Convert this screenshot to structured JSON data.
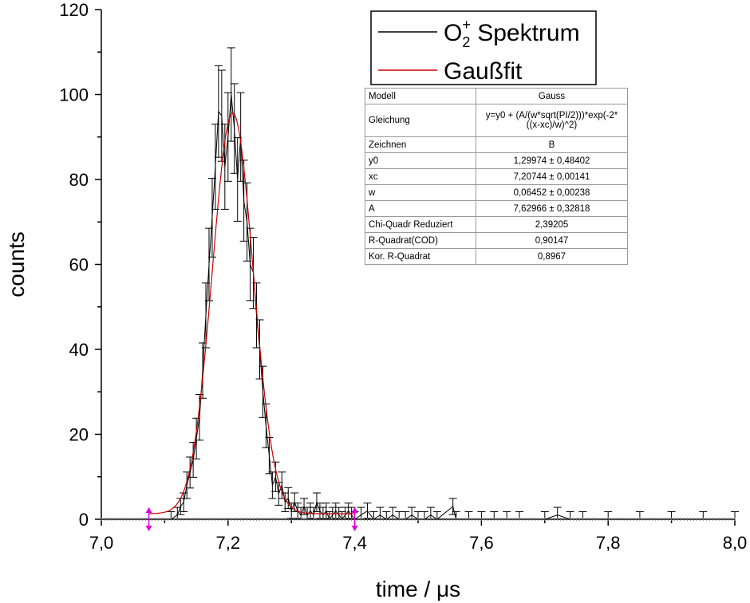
{
  "chart_data": {
    "type": "line",
    "xlabel": "time / μs",
    "ylabel": "counts",
    "xlim": [
      7.0,
      8.0
    ],
    "ylim": [
      0,
      120
    ],
    "x_ticks": [
      "7,0",
      "7,2",
      "7,4",
      "7,6",
      "7,8",
      "8,0"
    ],
    "y_ticks": [
      "0",
      "20",
      "40",
      "60",
      "80",
      "100",
      "120"
    ],
    "grid": false,
    "legend_position": "top-right",
    "series": [
      {
        "name": "O2+ Spektrum",
        "color": "#000000",
        "error_bars": true,
        "points": [
          [
            7.11,
            0
          ],
          [
            7.12,
            1
          ],
          [
            7.125,
            3
          ],
          [
            7.13,
            4
          ],
          [
            7.135,
            8
          ],
          [
            7.14,
            11
          ],
          [
            7.145,
            14
          ],
          [
            7.15,
            19
          ],
          [
            7.155,
            24
          ],
          [
            7.16,
            35
          ],
          [
            7.165,
            48
          ],
          [
            7.17,
            60
          ],
          [
            7.175,
            71
          ],
          [
            7.18,
            83
          ],
          [
            7.185,
            96
          ],
          [
            7.19,
            95
          ],
          [
            7.195,
            83
          ],
          [
            7.2,
            90
          ],
          [
            7.205,
            100
          ],
          [
            7.21,
            92
          ],
          [
            7.215,
            80
          ],
          [
            7.22,
            90
          ],
          [
            7.225,
            75
          ],
          [
            7.23,
            70
          ],
          [
            7.235,
            60
          ],
          [
            7.24,
            58
          ],
          [
            7.245,
            48
          ],
          [
            7.25,
            40
          ],
          [
            7.255,
            30
          ],
          [
            7.26,
            22
          ],
          [
            7.265,
            15
          ],
          [
            7.27,
            8
          ],
          [
            7.275,
            10
          ],
          [
            7.28,
            6
          ],
          [
            7.285,
            8
          ],
          [
            7.29,
            4
          ],
          [
            7.295,
            5
          ],
          [
            7.3,
            2
          ],
          [
            7.305,
            4
          ],
          [
            7.31,
            2
          ],
          [
            7.315,
            1
          ],
          [
            7.32,
            3
          ],
          [
            7.325,
            1
          ],
          [
            7.33,
            2
          ],
          [
            7.335,
            1
          ],
          [
            7.34,
            4
          ],
          [
            7.345,
            2
          ],
          [
            7.35,
            1
          ],
          [
            7.355,
            2
          ],
          [
            7.36,
            0
          ],
          [
            7.365,
            1
          ],
          [
            7.37,
            2
          ],
          [
            7.375,
            1
          ],
          [
            7.38,
            0
          ],
          [
            7.385,
            1
          ],
          [
            7.39,
            2
          ],
          [
            7.395,
            1
          ],
          [
            7.4,
            0
          ],
          [
            7.41,
            1
          ],
          [
            7.42,
            2
          ],
          [
            7.43,
            0
          ],
          [
            7.44,
            1
          ],
          [
            7.45,
            0
          ],
          [
            7.46,
            1
          ],
          [
            7.47,
            0
          ],
          [
            7.48,
            0
          ],
          [
            7.49,
            1
          ],
          [
            7.5,
            0
          ],
          [
            7.51,
            0
          ],
          [
            7.52,
            1
          ],
          [
            7.53,
            0
          ],
          [
            7.555,
            3
          ],
          [
            7.56,
            0
          ],
          [
            7.58,
            0
          ],
          [
            7.6,
            0
          ],
          [
            7.62,
            0
          ],
          [
            7.64,
            0
          ],
          [
            7.66,
            0
          ],
          [
            7.7,
            0
          ],
          [
            7.72,
            1
          ],
          [
            7.74,
            0
          ],
          [
            7.76,
            0
          ],
          [
            7.8,
            0
          ],
          [
            7.85,
            0
          ],
          [
            7.9,
            0
          ],
          [
            7.95,
            0
          ],
          [
            8.0,
            0
          ]
        ]
      },
      {
        "name": "Gaußfit",
        "color": "#cc0000",
        "model": "gauss",
        "params": {
          "y0": 1.29974,
          "xc": 7.20744,
          "w": 0.06452,
          "A": 7.62966
        }
      }
    ]
  },
  "legend": {
    "items": [
      {
        "base": "O",
        "sub": "2",
        "sup": "+",
        "rest": " Spektrum"
      },
      {
        "base": "Gaußfit"
      }
    ]
  },
  "fit_table": {
    "rows": [
      {
        "label": "Modell",
        "value": "Gauss"
      },
      {
        "label": "Gleichung",
        "value": "y=y0 + (A/(w*sqrt(PI/2)))*exp(-2*((x-xc)/w)^2)"
      },
      {
        "label": "Zeichnen",
        "value": "B"
      },
      {
        "label": "y0",
        "value": "1,29974 ± 0,48402"
      },
      {
        "label": "xc",
        "value": "7,20744 ± 0,00141"
      },
      {
        "label": "w",
        "value": "0,06452 ± 0,00238"
      },
      {
        "label": "A",
        "value": "7,62966 ± 0,32818"
      },
      {
        "label": "Chi-Quadr Reduziert",
        "value": "2,39205"
      },
      {
        "label": "R-Quadrat(COD)",
        "value": "0,90147"
      },
      {
        "label": "Kor. R-Quadrat",
        "value": "0,8967"
      }
    ]
  }
}
